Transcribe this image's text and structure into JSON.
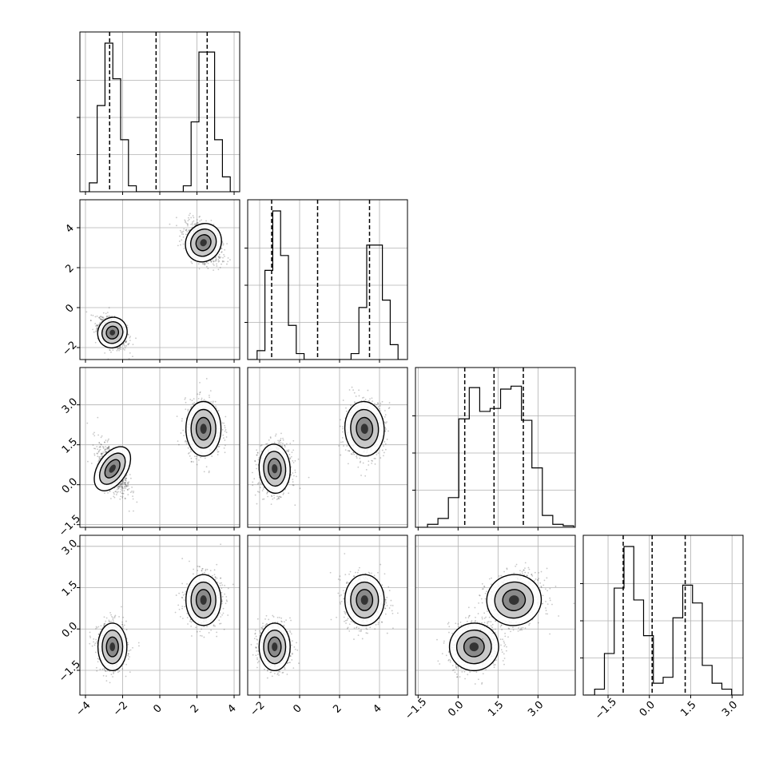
{
  "chart_data": {
    "type": "corner",
    "parameters": [
      {
        "range": [
          -4.3,
          4.3
        ],
        "ticks": [
          -4,
          -2,
          0,
          2,
          4
        ],
        "tick_labels": [
          "−4",
          "−2",
          "0",
          "2",
          "4"
        ],
        "modes": [
          {
            "mu": -2.55,
            "sd": 0.38
          },
          {
            "mu": 2.35,
            "sd": 0.46
          }
        ],
        "hist_bins": [
          0.0,
          0.06,
          0.58,
          1.0,
          0.76,
          0.35,
          0.04,
          0.0,
          0.0,
          0.0,
          0.0,
          0.0,
          0.0,
          0.04,
          0.47,
          0.94,
          0.94,
          0.35,
          0.1,
          0.0
        ],
        "quantiles": [
          -2.7,
          -0.2,
          2.55
        ]
      },
      {
        "range": [
          -2.6,
          5.4
        ],
        "ticks": [
          -2,
          0,
          2,
          4
        ],
        "tick_labels": [
          "−2",
          "0",
          "2",
          "4"
        ],
        "modes": [
          {
            "mu": -1.25,
            "sd": 0.38
          },
          {
            "mu": 3.25,
            "sd": 0.48
          }
        ],
        "hist_bins": [
          0.0,
          0.06,
          0.6,
          1.0,
          0.7,
          0.23,
          0.04,
          0.0,
          0.0,
          0.0,
          0.0,
          0.0,
          0.0,
          0.04,
          0.35,
          0.77,
          0.77,
          0.4,
          0.1,
          0.0
        ],
        "quantiles": [
          -1.4,
          0.9,
          3.5
        ]
      },
      {
        "range": [
          -1.6,
          4.4
        ],
        "ticks": [
          -1.5,
          0.0,
          1.5,
          3.0
        ],
        "tick_labels": [
          "−1.5",
          "0.0",
          "1.5",
          "3.0"
        ],
        "modes": [
          {
            "mu": 0.6,
            "sd": 0.45
          },
          {
            "mu": 2.1,
            "sd": 0.5
          }
        ],
        "hist_bins": [
          0.0,
          0.02,
          0.06,
          0.2,
          0.73,
          0.94,
          0.78,
          0.8,
          0.93,
          0.95,
          0.72,
          0.4,
          0.08,
          0.02,
          0.01
        ],
        "quantiles": [
          0.25,
          1.35,
          2.45
        ]
      },
      {
        "range": [
          -2.4,
          3.4
        ],
        "ticks": [
          -1.5,
          0.0,
          1.5,
          3.0
        ],
        "tick_labels": [
          "−1.5",
          "0.0",
          "1.5",
          "3.0"
        ],
        "modes": [
          {
            "mu": -0.65,
            "sd": 0.42
          },
          {
            "mu": 1.05,
            "sd": 0.45
          }
        ],
        "hist_bins": [
          0.0,
          0.04,
          0.28,
          0.72,
          1.0,
          0.64,
          0.4,
          0.08,
          0.12,
          0.52,
          0.74,
          0.62,
          0.2,
          0.08,
          0.04,
          0.0
        ],
        "quantiles": [
          -0.95,
          0.1,
          1.3
        ]
      }
    ],
    "hist_y_ticks": [
      0.25,
      0.5,
      0.75
    ],
    "grid": true,
    "legend": "none"
  }
}
